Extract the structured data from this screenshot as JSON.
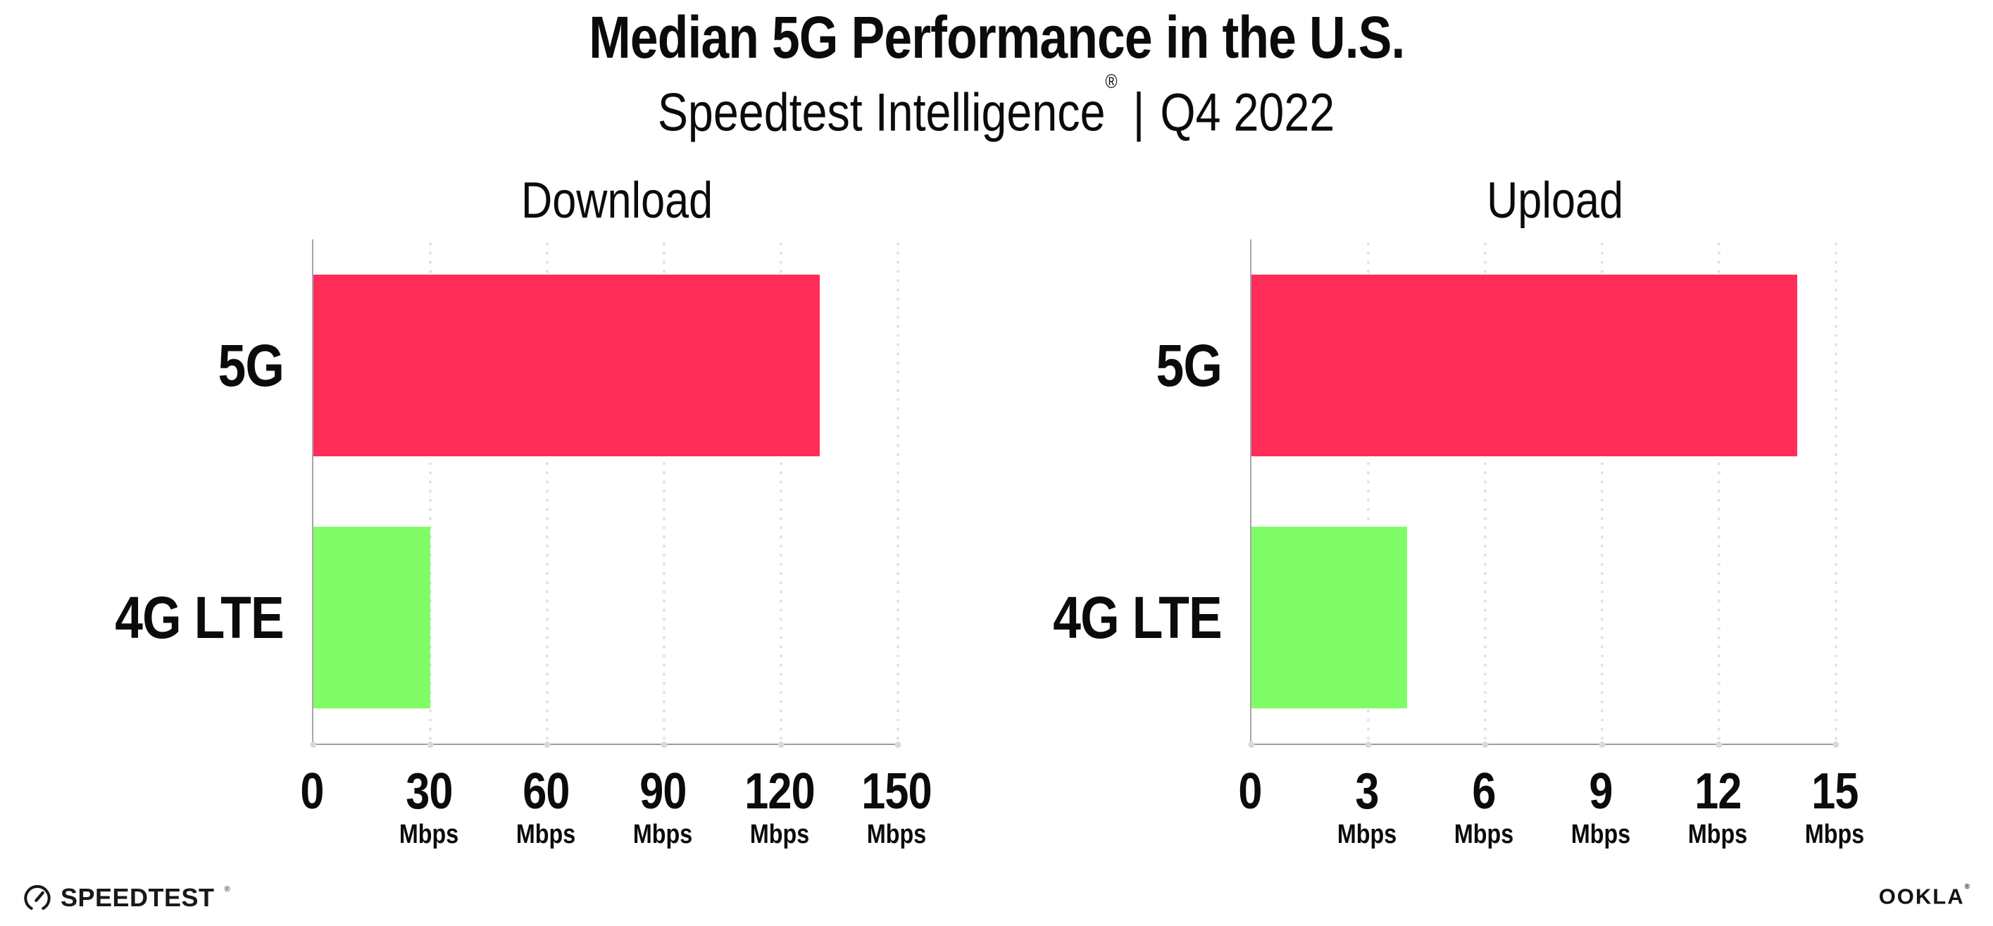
{
  "page": {
    "title": "Median 5G Performance in the U.S.",
    "subtitle": {
      "product": "Speedtest Intelligence",
      "registered_mark": "®",
      "separator": "|",
      "period": "Q4 2022"
    }
  },
  "branding": {
    "speedtest_wordmark": "SPEEDTEST",
    "speedtest_mark": "®",
    "ookla_wordmark": "OOKLA",
    "ookla_mark": "®"
  },
  "colors": {
    "bar_5g": "#FF2D58",
    "bar_4g_lte": "#80FC66",
    "axis": "#9B9BA3",
    "gridline_dot": "#E0E1EB",
    "tick_dot": "#D8D8E2",
    "text": "#0B0B0B"
  },
  "chart_data": [
    {
      "type": "bar",
      "orientation": "horizontal",
      "title": "Download",
      "categories": [
        "5G",
        "4G LTE"
      ],
      "values": [
        130,
        30
      ],
      "value_unit": "Mbps",
      "xlim": [
        0,
        150
      ],
      "xticks": [
        0,
        30,
        60,
        90,
        120,
        150
      ],
      "xtick_unit": "Mbps",
      "bar_colors": [
        "#FF2D58",
        "#80FC66"
      ],
      "grid": "vertical-dotted",
      "legend": "none"
    },
    {
      "type": "bar",
      "orientation": "horizontal",
      "title": "Upload",
      "categories": [
        "5G",
        "4G LTE"
      ],
      "values": [
        14,
        4
      ],
      "value_unit": "Mbps",
      "xlim": [
        0,
        15
      ],
      "xticks": [
        0,
        3,
        6,
        9,
        12,
        15
      ],
      "xtick_unit": "Mbps",
      "bar_colors": [
        "#FF2D58",
        "#80FC66"
      ],
      "grid": "vertical-dotted",
      "legend": "none"
    }
  ]
}
